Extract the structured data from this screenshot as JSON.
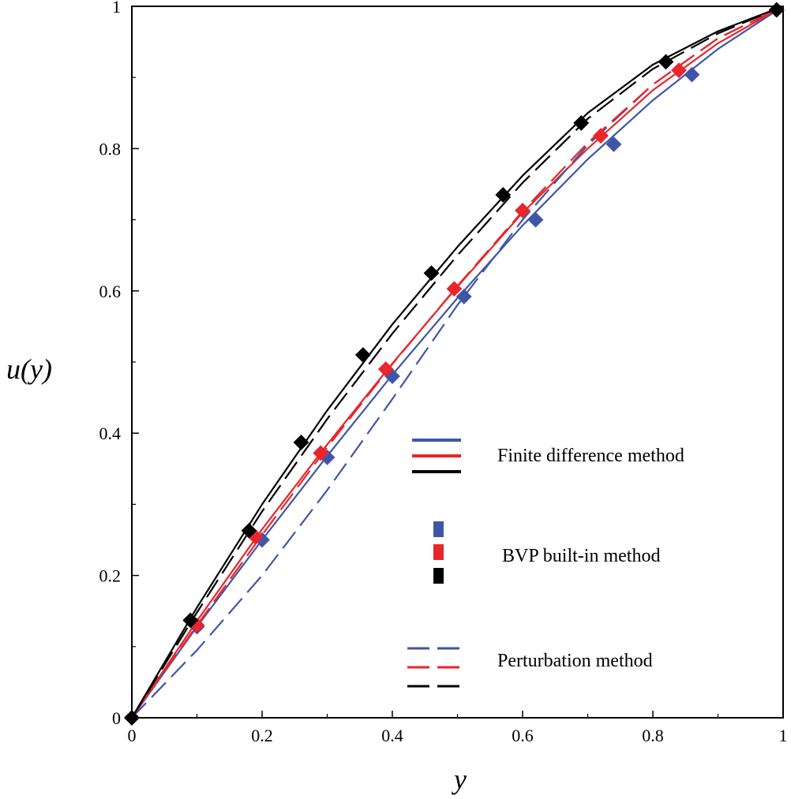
{
  "chart_data": {
    "type": "line",
    "title": "",
    "xlabel": "y",
    "ylabel": "u(y)",
    "xlim": [
      0,
      1
    ],
    "ylim": [
      0,
      1
    ],
    "x_ticks": [
      "0",
      "0.2",
      "0.4",
      "0.6",
      "0.8",
      "1"
    ],
    "y_ticks": [
      "0",
      "0.2",
      "0.4",
      "0.6",
      "0.8",
      "1"
    ],
    "grid": false,
    "legend": {
      "placement": "center-right",
      "entries": [
        {
          "label": "Finite difference method",
          "style": "solid-lines"
        },
        {
          "label": "BVP built-in method",
          "style": "square-markers"
        },
        {
          "label": "Perturbation method",
          "style": "dashed-lines"
        }
      ]
    },
    "colors": {
      "blue": "#3f56a8",
      "red": "#e8262b",
      "black": "#000000"
    },
    "series": [
      {
        "name": "Finite difference method (blue)",
        "color": "#3f56a8",
        "style": "solid",
        "x": [
          0,
          0.1,
          0.2,
          0.3,
          0.4,
          0.5,
          0.6,
          0.7,
          0.8,
          0.9,
          1.0
        ],
        "y": [
          0,
          0.128,
          0.25,
          0.368,
          0.482,
          0.59,
          0.692,
          0.785,
          0.868,
          0.94,
          1.0
        ]
      },
      {
        "name": "Finite difference method (red)",
        "color": "#e8262b",
        "style": "solid",
        "x": [
          0,
          0.1,
          0.2,
          0.3,
          0.4,
          0.5,
          0.6,
          0.7,
          0.8,
          0.9,
          1.0
        ],
        "y": [
          0,
          0.136,
          0.265,
          0.384,
          0.498,
          0.606,
          0.71,
          0.8,
          0.882,
          0.948,
          1.0
        ]
      },
      {
        "name": "Finite difference method (black)",
        "color": "#000000",
        "style": "solid",
        "x": [
          0,
          0.1,
          0.2,
          0.3,
          0.4,
          0.5,
          0.6,
          0.7,
          0.8,
          0.9,
          1.0
        ],
        "y": [
          0,
          0.155,
          0.3,
          0.432,
          0.553,
          0.662,
          0.762,
          0.85,
          0.918,
          0.965,
          1.0
        ]
      },
      {
        "name": "BVP built-in method (blue)",
        "color": "#3f56a8",
        "style": "marker",
        "x": [
          0,
          0.1,
          0.2,
          0.3,
          0.4,
          0.51,
          0.62,
          0.74,
          0.86,
          0.99
        ],
        "y": [
          0,
          0.128,
          0.25,
          0.366,
          0.48,
          0.592,
          0.7,
          0.806,
          0.904,
          0.995
        ]
      },
      {
        "name": "BVP built-in method (red)",
        "color": "#e8262b",
        "style": "marker",
        "x": [
          0,
          0.1,
          0.19,
          0.29,
          0.39,
          0.495,
          0.6,
          0.72,
          0.84,
          0.99
        ],
        "y": [
          0,
          0.13,
          0.254,
          0.372,
          0.49,
          0.603,
          0.713,
          0.818,
          0.91,
          0.995
        ]
      },
      {
        "name": "BVP built-in method (black)",
        "color": "#000000",
        "style": "marker",
        "x": [
          0,
          0.09,
          0.18,
          0.26,
          0.355,
          0.46,
          0.57,
          0.69,
          0.82,
          0.99
        ],
        "y": [
          0,
          0.137,
          0.263,
          0.387,
          0.51,
          0.625,
          0.735,
          0.836,
          0.922,
          0.995
        ]
      },
      {
        "name": "Perturbation method (blue)",
        "color": "#3f56a8",
        "style": "dashed",
        "x": [
          0,
          0.1,
          0.2,
          0.3,
          0.4,
          0.5,
          0.6,
          0.7,
          0.8,
          0.9,
          1.0
        ],
        "y": [
          0,
          0.095,
          0.2,
          0.32,
          0.448,
          0.58,
          0.7,
          0.805,
          0.89,
          0.955,
          1.0
        ]
      },
      {
        "name": "Perturbation method (red)",
        "color": "#e8262b",
        "style": "dashed",
        "x": [
          0,
          0.1,
          0.2,
          0.3,
          0.4,
          0.5,
          0.6,
          0.7,
          0.8,
          0.9,
          1.0
        ],
        "y": [
          0,
          0.13,
          0.257,
          0.38,
          0.497,
          0.607,
          0.712,
          0.808,
          0.89,
          0.955,
          1.0
        ]
      },
      {
        "name": "Perturbation method (black)",
        "color": "#000000",
        "style": "dashed",
        "x": [
          0,
          0.1,
          0.2,
          0.3,
          0.4,
          0.5,
          0.6,
          0.7,
          0.8,
          0.9,
          1.0
        ],
        "y": [
          0,
          0.148,
          0.29,
          0.42,
          0.54,
          0.65,
          0.752,
          0.842,
          0.912,
          0.962,
          1.0
        ]
      }
    ]
  }
}
